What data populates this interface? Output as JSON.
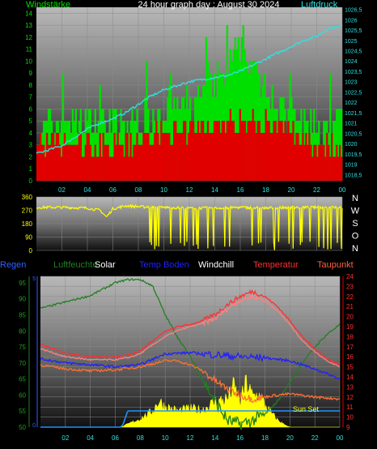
{
  "title": "24 hour graph day : August 30 2024",
  "x_ticks": [
    "02",
    "04",
    "06",
    "08",
    "10",
    "12",
    "14",
    "16",
    "18",
    "20",
    "22",
    "00"
  ],
  "colors": {
    "green": "#00e000",
    "red": "#e00000",
    "cyan": "#30e0e0",
    "yellow": "#ffff00",
    "blue": "#2020ff",
    "dark_green": "#208020",
    "orange": "#ff7030",
    "white": "#ffffff",
    "salmon": "#ff6040",
    "label_blue": "#3060ff"
  },
  "chart_data": [
    {
      "type": "bar",
      "title": "24 hour graph day : August 30 2024",
      "left_label": "Windstärke",
      "right_label": "Luftdruck",
      "left_ticks": [
        "0",
        "1",
        "2",
        "3",
        "4",
        "5",
        "6",
        "7",
        "8",
        "9",
        "10",
        "11",
        "12",
        "13",
        "14"
      ],
      "right_ticks": [
        "1018,5",
        "1019",
        "1019,5",
        "1020",
        "1020,5",
        "1021",
        "1021,5",
        "1022",
        "1022,5",
        "1023",
        "1023,5",
        "1024",
        "1024,5",
        "1025",
        "1025,5",
        "1026",
        "1026,5"
      ],
      "ylim_left": [
        0,
        14.5
      ],
      "ylim_right": [
        1018.2,
        1026.6
      ],
      "series": [
        {
          "name": "Windstärke",
          "type": "bar",
          "keypoints_hour": [
            0,
            2,
            4,
            6,
            7,
            8,
            10,
            12,
            13,
            14,
            15,
            16,
            16.5,
            17,
            18,
            19,
            20,
            21,
            22,
            23,
            24
          ],
          "values": [
            4,
            5,
            5,
            5,
            4,
            5,
            6,
            6,
            7,
            8,
            9,
            11,
            10,
            9,
            8,
            6,
            5,
            5,
            4,
            4,
            5
          ]
        },
        {
          "name": "Böen",
          "type": "bar",
          "keypoints_hour": [
            0,
            2,
            4,
            6,
            8,
            10,
            12,
            14,
            16,
            18,
            20,
            22,
            24
          ],
          "values": [
            3,
            3,
            3,
            3,
            3,
            4,
            4,
            5,
            5,
            5,
            4,
            3,
            3
          ]
        },
        {
          "name": "Luftdruck",
          "type": "line",
          "x_hour": [
            0,
            1,
            2,
            3,
            4,
            5,
            6,
            7,
            8,
            9,
            10,
            11,
            12,
            13,
            14,
            15,
            16,
            17,
            18,
            19,
            20,
            21,
            22,
            23,
            24
          ],
          "values": [
            1019.5,
            1019.7,
            1019.9,
            1020.3,
            1020.7,
            1021.0,
            1021.2,
            1021.5,
            1021.9,
            1022.3,
            1022.6,
            1022.8,
            1023.0,
            1023.1,
            1023.2,
            1023.3,
            1023.5,
            1023.8,
            1024.1,
            1024.4,
            1024.7,
            1025.0,
            1025.2,
            1025.6,
            1025.7
          ]
        }
      ]
    },
    {
      "type": "line",
      "title": "",
      "ylabels": [
        "0",
        "90",
        "180",
        "270",
        "360"
      ],
      "ylim": [
        0,
        360
      ],
      "right_letters": [
        "N",
        "W",
        "S",
        "O",
        "N"
      ],
      "series": [
        {
          "name": "Windrichtung",
          "x_hour": [
            0,
            2,
            4,
            5,
            5.5,
            6,
            7,
            8,
            9,
            10,
            12,
            14,
            16,
            18,
            20,
            22,
            24
          ],
          "values": [
            290,
            290,
            285,
            270,
            225,
            280,
            300,
            295,
            290,
            290,
            285,
            285,
            290,
            285,
            290,
            290,
            290
          ]
        }
      ]
    },
    {
      "type": "line",
      "legend": [
        "Regen",
        "Luftfeuchte",
        "Solar",
        "Temp Boden",
        "Windchill",
        "Temperatur",
        "Taupunkt"
      ],
      "sun_set_label": "Sun Set",
      "left_ticks": [
        "50",
        "55",
        "60",
        "65",
        "70",
        "75",
        "80",
        "85",
        "90",
        "95"
      ],
      "ylim_left": [
        50,
        97
      ],
      "right_ticks": [
        "9",
        "10",
        "11",
        "12",
        "13",
        "14",
        "15",
        "16",
        "17",
        "18",
        "19",
        "20",
        "21",
        "22",
        "23",
        "24"
      ],
      "ylim_right": [
        9,
        24
      ],
      "rain_ticks": [
        "0",
        "5"
      ],
      "series": [
        {
          "name": "Luftfeuchte",
          "axis": "left",
          "x_hour": [
            0,
            2,
            4,
            5,
            6,
            7,
            8,
            9,
            10,
            11,
            12,
            13,
            14,
            15,
            16,
            17,
            18,
            19,
            20,
            21,
            22,
            23,
            24
          ],
          "values": [
            87,
            89,
            91,
            93,
            95,
            96,
            96,
            94,
            85,
            78,
            72,
            65,
            58,
            52,
            51,
            52,
            54,
            58,
            64,
            70,
            75,
            79,
            82
          ]
        },
        {
          "name": "Temperatur",
          "axis": "right",
          "x_hour": [
            0,
            2,
            4,
            6,
            7,
            8,
            9,
            10,
            11,
            12,
            13,
            14,
            15,
            16,
            17,
            18,
            19,
            20,
            21,
            22,
            23,
            24
          ],
          "values": [
            17.2,
            16.4,
            16.0,
            16.0,
            16.2,
            16.6,
            17.6,
            18.5,
            19.0,
            19.2,
            19.6,
            20.2,
            21.2,
            22.0,
            22.5,
            22.0,
            21.0,
            19.6,
            18.0,
            16.8,
            15.8,
            15.2
          ]
        },
        {
          "name": "Windchill",
          "axis": "right",
          "x_hour": [
            0,
            2,
            4,
            6,
            7,
            8,
            9,
            10,
            11,
            12,
            13,
            14,
            15,
            16,
            17,
            18,
            19,
            20,
            21,
            22,
            23,
            24
          ],
          "values": [
            16.8,
            16.0,
            15.7,
            15.7,
            15.9,
            16.3,
            17.2,
            18.0,
            18.6,
            19.0,
            19.3,
            19.8,
            20.8,
            21.6,
            22.0,
            21.6,
            20.6,
            19.2,
            17.6,
            16.5,
            15.6,
            15.0
          ]
        },
        {
          "name": "Temp Boden",
          "axis": "right",
          "x_hour": [
            0,
            2,
            4,
            6,
            8,
            10,
            12,
            14,
            16,
            18,
            20,
            22,
            24
          ],
          "values": [
            15.8,
            15.4,
            15.2,
            15.0,
            15.2,
            16.3,
            16.4,
            16.2,
            16.0,
            15.9,
            15.6,
            14.8,
            13.8
          ]
        },
        {
          "name": "Taupunkt",
          "axis": "right",
          "x_hour": [
            0,
            2,
            4,
            6,
            8,
            10,
            11,
            12,
            13,
            14,
            15,
            16,
            17,
            18,
            19,
            20,
            22,
            24
          ],
          "values": [
            15.2,
            14.8,
            14.6,
            14.7,
            15.0,
            15.6,
            15.6,
            15.2,
            14.6,
            13.6,
            12.8,
            12.2,
            11.8,
            12.0,
            12.2,
            12.3,
            12.0,
            11.8
          ]
        },
        {
          "name": "Solar",
          "axis": "right",
          "x_hour": [
            0,
            6.5,
            7,
            8,
            9,
            9.5,
            10,
            11,
            12,
            13,
            14,
            15,
            15.5,
            16,
            16.5,
            17,
            17.5,
            18,
            18.5,
            19,
            19.5,
            20,
            24
          ],
          "values": [
            9,
            9,
            9.3,
            9.8,
            10.6,
            11.6,
            11.0,
            10.6,
            10.8,
            10.7,
            11.5,
            11.8,
            13,
            11.4,
            13.4,
            12.0,
            12.2,
            11.2,
            10.4,
            9.7,
            9.3,
            9.0,
            9
          ]
        },
        {
          "name": "Regen",
          "axis": "rain",
          "x_hour": [
            0,
            6.4,
            6.6,
            7.0,
            24
          ],
          "values": [
            0,
            0,
            0.2,
            1.7,
            1.7
          ]
        }
      ]
    }
  ]
}
